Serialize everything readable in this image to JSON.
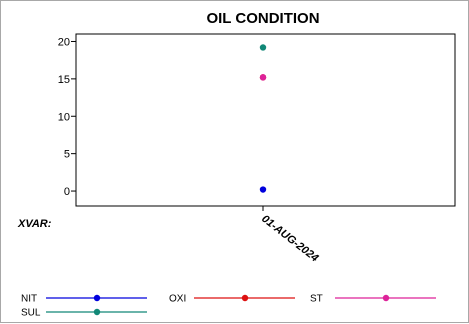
{
  "chart_data": {
    "type": "scatter",
    "title": "OIL CONDITION",
    "xlabel": "XVAR:",
    "ylabel": "",
    "categories": [
      "01-AUG-2024"
    ],
    "ylim": [
      -2,
      21
    ],
    "yticks": [
      0,
      5,
      10,
      15,
      20
    ],
    "grid": false,
    "legend_position": "bottom",
    "series": [
      {
        "name": "NIT",
        "values": [
          0.2
        ],
        "color": "#0000dd"
      },
      {
        "name": "OXI",
        "values": [
          15.2
        ],
        "color": "#dd1111"
      },
      {
        "name": "ST",
        "values": [
          15.2
        ],
        "color": "#dd2299"
      },
      {
        "name": "SUL",
        "values": [
          19.2
        ],
        "color": "#118877"
      }
    ]
  }
}
